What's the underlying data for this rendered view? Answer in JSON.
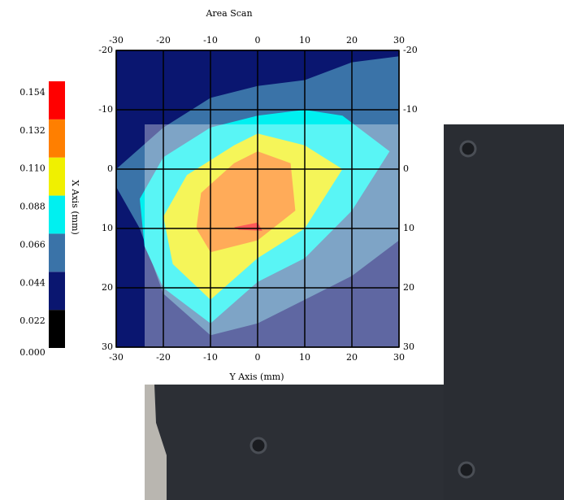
{
  "chart_data": {
    "type": "contour",
    "title": "Area Scan",
    "x_label": "Y Axis (mm)",
    "y_label": "X Axis (mm)",
    "xlim": [
      -30,
      30
    ],
    "ylim": [
      -20,
      30
    ],
    "xticks": [
      -30,
      -20,
      -10,
      0,
      10,
      20,
      30
    ],
    "yticks": [
      -20,
      -10,
      0,
      10,
      20,
      30
    ],
    "grid": true,
    "colorbar": {
      "levels": [
        {
          "value": 0,
          "label": "0.000"
        },
        0.022,
        0.044,
        0.066,
        0.088,
        {
          "value": 0.11,
          "label": "0.110"
        },
        0.132,
        0.154
      ],
      "colors": [
        "#000000",
        "#0a1670",
        "#3a73a8",
        "#00f0f0",
        "#f0f000",
        "#ff7f00",
        "#ff0000"
      ]
    },
    "contours": [
      {
        "level": 0.022,
        "points": [
          [
            -30,
            -20
          ],
          [
            30,
            -20
          ],
          [
            30,
            30
          ],
          [
            -30,
            30
          ]
        ]
      },
      {
        "level": 0.044,
        "points": [
          [
            -30,
            0
          ],
          [
            -20,
            -7
          ],
          [
            -10,
            -12
          ],
          [
            0,
            -14
          ],
          [
            10,
            -15
          ],
          [
            20,
            -18
          ],
          [
            30,
            -19
          ],
          [
            30,
            12
          ],
          [
            20,
            18
          ],
          [
            10,
            22
          ],
          [
            0,
            26
          ],
          [
            -10,
            28
          ],
          [
            -20,
            21
          ],
          [
            -25,
            10
          ],
          [
            -30,
            3
          ]
        ]
      },
      {
        "level": 0.066,
        "points": [
          [
            -25,
            5
          ],
          [
            -20,
            -2
          ],
          [
            -10,
            -7
          ],
          [
            0,
            -9
          ],
          [
            10,
            -10
          ],
          [
            18,
            -9
          ],
          [
            28,
            -3
          ],
          [
            20,
            7
          ],
          [
            10,
            15
          ],
          [
            0,
            19
          ],
          [
            -10,
            26
          ],
          [
            -20,
            20
          ],
          [
            -24,
            13
          ]
        ]
      },
      {
        "level": 0.088,
        "points": [
          [
            -20,
            8
          ],
          [
            -15,
            1
          ],
          [
            -5,
            -4
          ],
          [
            0,
            -6
          ],
          [
            10,
            -4
          ],
          [
            18,
            0
          ],
          [
            10,
            10
          ],
          [
            0,
            15
          ],
          [
            -10,
            22
          ],
          [
            -18,
            16
          ]
        ]
      },
      {
        "level": 0.11,
        "points": [
          [
            -12,
            4
          ],
          [
            -5,
            -1
          ],
          [
            0,
            -3
          ],
          [
            7,
            -1
          ],
          [
            8,
            7
          ],
          [
            0,
            12
          ],
          [
            -10,
            14
          ],
          [
            -13,
            10
          ]
        ]
      },
      {
        "level": 0.132,
        "points": [
          [
            -5,
            9.8
          ],
          [
            0,
            9
          ],
          [
            1,
            10.4
          ],
          [
            -4,
            10.2
          ]
        ]
      }
    ]
  }
}
